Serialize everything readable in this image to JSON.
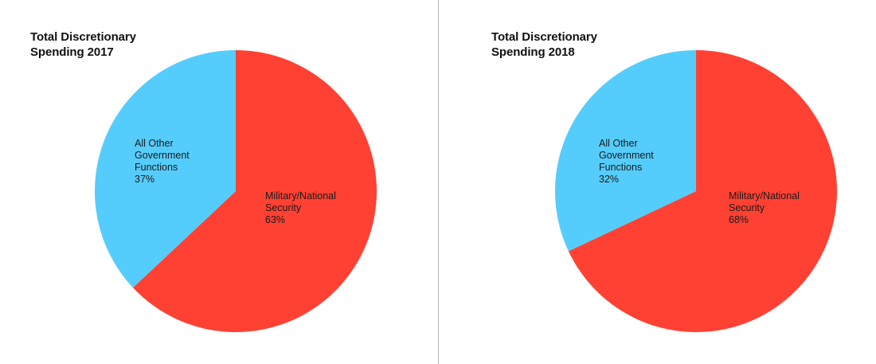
{
  "chart_data": [
    {
      "type": "pie",
      "title": "Total Discretionary Spending 2017",
      "title_lines": [
        "Total Discretionary",
        "Spending 2017"
      ],
      "slices": [
        {
          "label": "Military/National Security",
          "label_lines": [
            "Military/National",
            "Security",
            "63%"
          ],
          "value": 63,
          "color": "#ff4133"
        },
        {
          "label": "All Other Government Functions",
          "label_lines": [
            "All Other",
            "Government",
            "Functions",
            "37%"
          ],
          "value": 37,
          "color": "#55cdfc"
        }
      ]
    },
    {
      "type": "pie",
      "title": "Total Discretionary Spending 2018",
      "title_lines": [
        "Total Discretionary",
        "Spending 2018"
      ],
      "slices": [
        {
          "label": "Military/National Security",
          "label_lines": [
            "Military/National",
            "Security",
            "68%"
          ],
          "value": 68,
          "color": "#ff4133"
        },
        {
          "label": "All Other Government Functions",
          "label_lines": [
            "All Other",
            "Government",
            "Functions",
            "32%"
          ],
          "value": 32,
          "color": "#55cdfc"
        }
      ]
    }
  ]
}
